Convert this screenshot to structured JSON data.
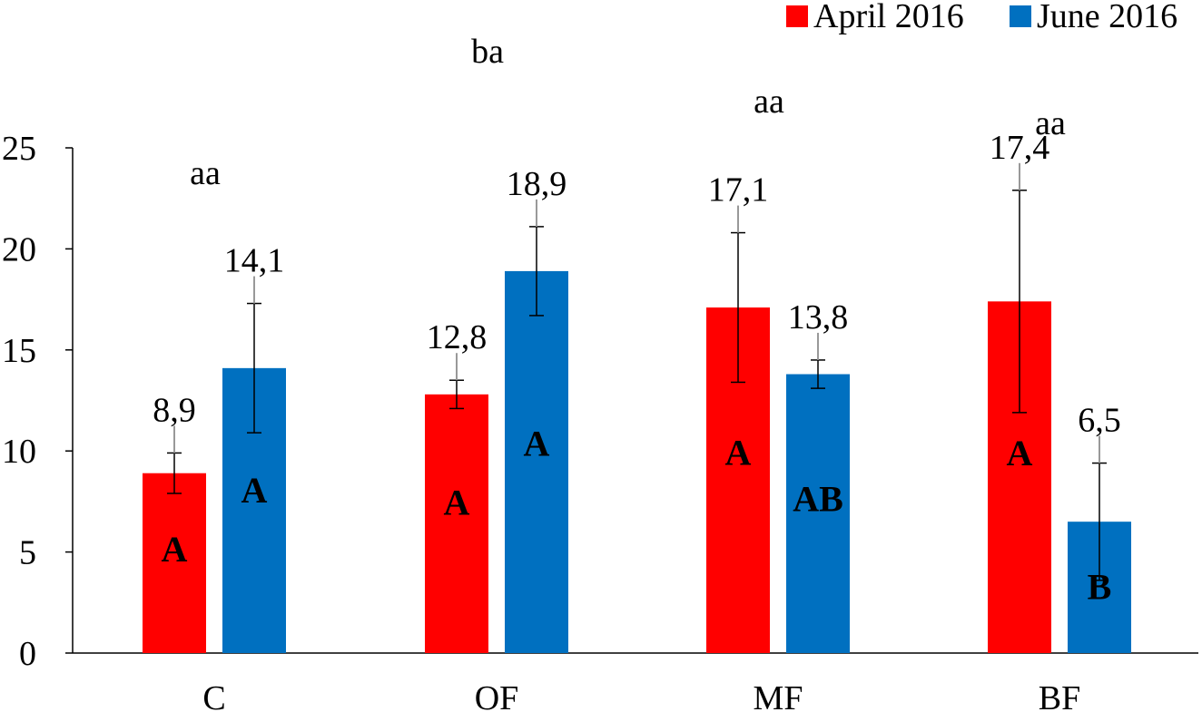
{
  "chart_data": {
    "type": "bar",
    "categories": [
      "C",
      "OF",
      "MF",
      "BF"
    ],
    "series": [
      {
        "name": "April 2016",
        "color": "#ff0000",
        "values": [
          8.9,
          12.8,
          17.1,
          17.4
        ],
        "value_labels": [
          "8,9",
          "12,8",
          "17,1",
          "17,4"
        ],
        "error": [
          1.0,
          0.7,
          3.7,
          5.5
        ],
        "letters": [
          "A",
          "A",
          "A",
          "A"
        ]
      },
      {
        "name": "June 2016",
        "color": "#0070c0",
        "values": [
          14.1,
          18.9,
          13.8,
          6.5
        ],
        "value_labels": [
          "14,1",
          "18,9",
          "13,8",
          "6,5"
        ],
        "error": [
          3.2,
          2.2,
          0.7,
          2.9
        ],
        "letters": [
          "A",
          "A",
          "AB",
          "B"
        ]
      }
    ],
    "group_labels": [
      "aa",
      "ba",
      "aa",
      "aa"
    ],
    "ylim": [
      0,
      25
    ],
    "yticks": [
      "0",
      "5",
      "10",
      "15",
      "20",
      "25"
    ],
    "legend_position": "top-right",
    "grid": false
  }
}
